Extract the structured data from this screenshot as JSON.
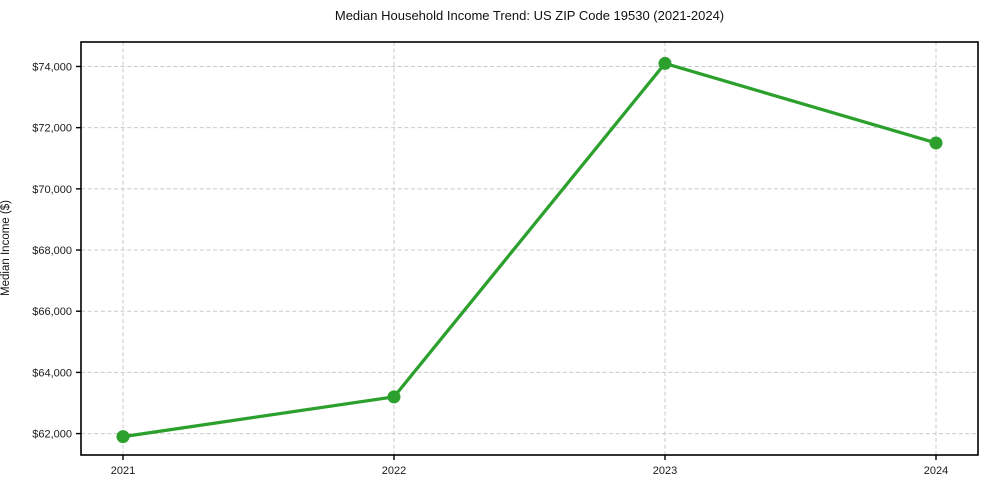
{
  "chart_data": {
    "type": "line",
    "title": "Median Household Income Trend: US ZIP Code 19530 (2021-2024)",
    "xlabel": "",
    "ylabel": "Median Income ($)",
    "categories": [
      "2021",
      "2022",
      "2023",
      "2024"
    ],
    "series": [
      {
        "name": "Median Household Income",
        "values": [
          61900,
          63200,
          74100,
          71500
        ],
        "color": "#2ca02c"
      }
    ],
    "yticks": [
      62000,
      64000,
      66000,
      68000,
      70000,
      72000,
      74000
    ],
    "ytick_labels": [
      "$62,000",
      "$64,000",
      "$66,000",
      "$68,000",
      "$70,000",
      "$72,000",
      "$74,000"
    ],
    "ylim": [
      61300,
      74800
    ],
    "grid": "dashed-both",
    "legend": "none"
  },
  "figure": {
    "background_color": "#ffffff",
    "grid_color": "#c9c9c9",
    "spine_color": "#000000",
    "tick_color": "#000000",
    "text_color": "#1a1a1a",
    "line_color": "#2ca02c",
    "marker_color": "#2ca02c",
    "line_width": 3.25,
    "marker_radius": 6.5
  }
}
